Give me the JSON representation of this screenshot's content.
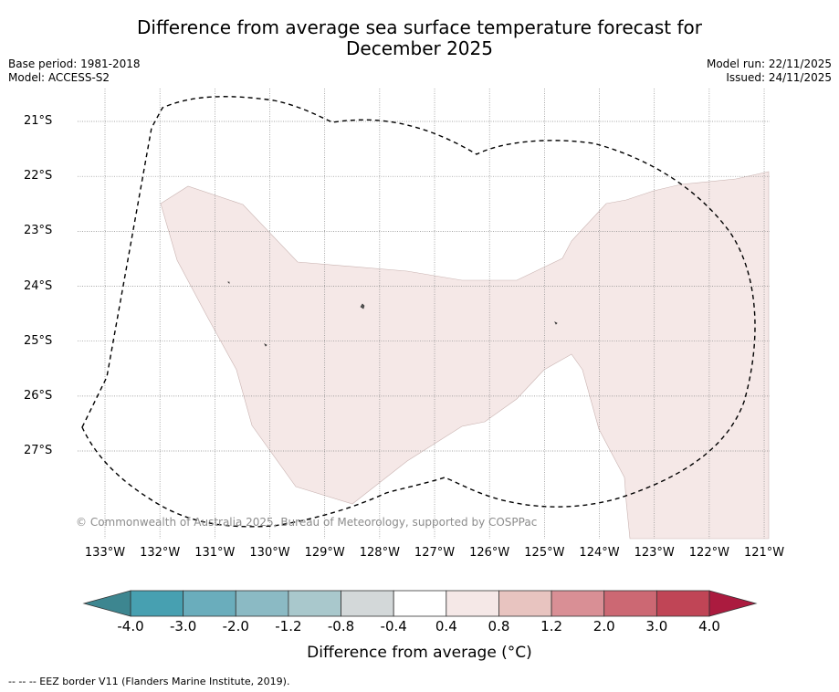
{
  "title": {
    "line1": "Difference from average sea surface temperature forecast for",
    "line2": "December 2025"
  },
  "meta": {
    "base_period": "Base period: 1981-2018",
    "model": "Model: ACCESS-S2",
    "model_run": "Model run: 22/11/2025",
    "issued": "Issued: 24/11/2025"
  },
  "map": {
    "lat_labels": [
      "21°S",
      "22°S",
      "23°S",
      "24°S",
      "25°S",
      "26°S",
      "27°S"
    ],
    "lon_labels": [
      "133°W",
      "132°W",
      "131°W",
      "130°W",
      "129°W",
      "128°W",
      "127°W",
      "126°W",
      "125°W",
      "124°W",
      "123°W",
      "122°W",
      "121°W"
    ],
    "anomaly_fill_color": "#f5e8e7",
    "anomaly_category": "0.4 to 0.8",
    "copyright": "© Commonwealth of Australia 2025, Bureau of Meteorology, supported by COSPPac"
  },
  "colorbar": {
    "labels": [
      "-4.0",
      "-3.0",
      "-2.0",
      "-1.2",
      "-0.8",
      "-0.4",
      "0.4",
      "0.8",
      "1.2",
      "2.0",
      "3.0",
      "4.0"
    ],
    "colors": [
      "#47a0b1",
      "#6aadbc",
      "#8bbac4",
      "#a9c8cc",
      "#d3d8d9",
      "#ffffff",
      "#f5e8e7",
      "#e8c4c0",
      "#d98f95",
      "#cc6873",
      "#c04556"
    ],
    "extend_low_color": "#3d8690",
    "extend_high_color": "#ab1b3f",
    "title": "Difference from average (°C)"
  },
  "footnote": "--  --  -- EEZ border V11 (Flanders Marine Institute, 2019)."
}
